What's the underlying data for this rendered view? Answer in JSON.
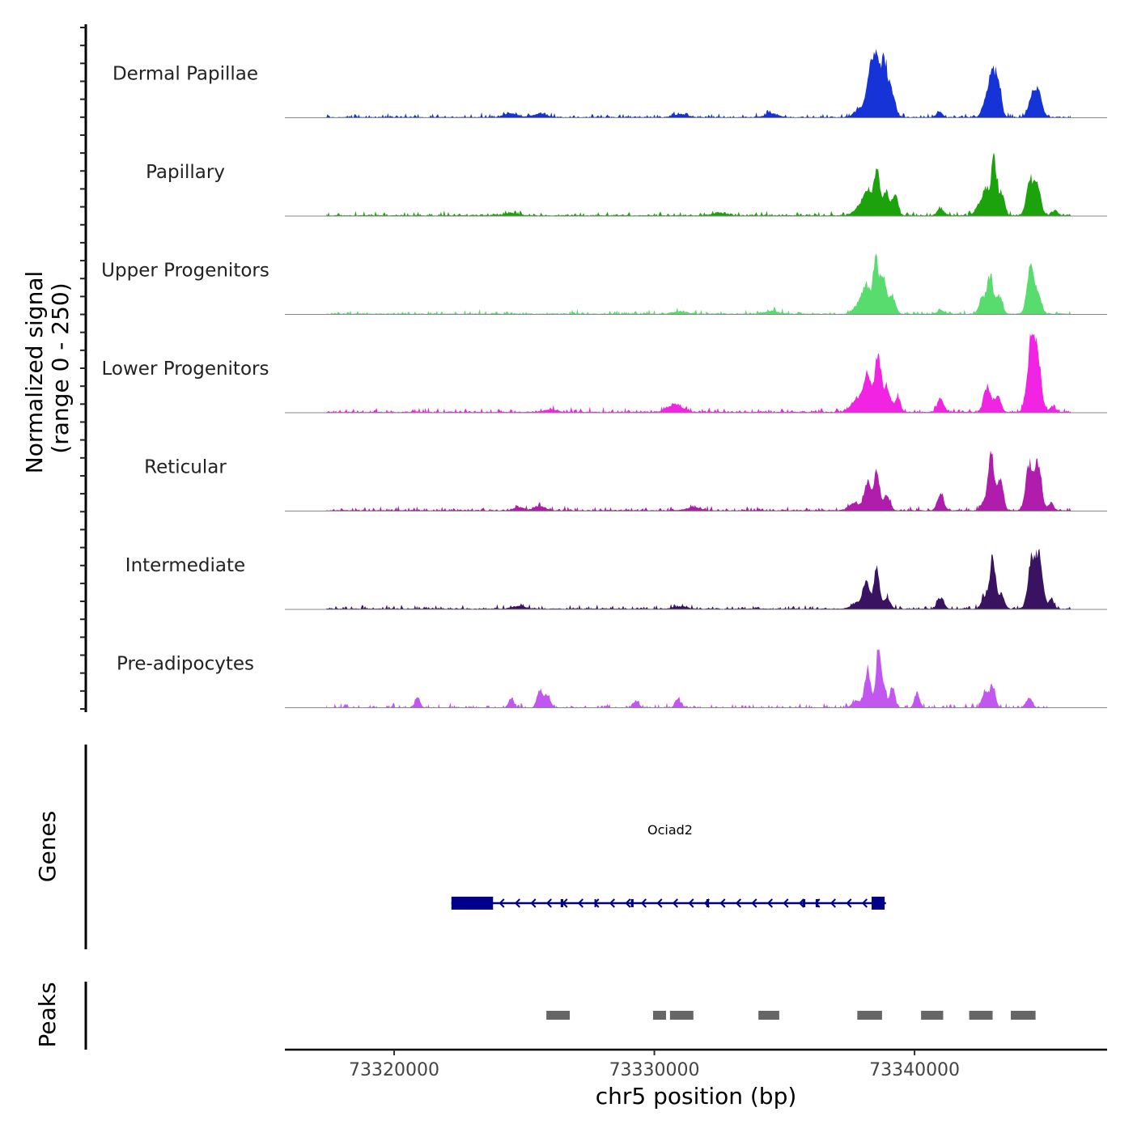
{
  "chart_data": {
    "type": "area",
    "region": {
      "chrom": "chr5",
      "start": 73315800,
      "end": 73347400
    },
    "data_extent": {
      "start": 73317400,
      "end": 73346000
    },
    "signal_range": [
      0,
      250
    ],
    "ylabel_line1": "Normalized signal",
    "ylabel_line2": "(range 0 - 250)",
    "xlabel": "chr5 position (bp)",
    "x_ticks": [
      {
        "value": 73320000,
        "label": "73320000"
      },
      {
        "value": 73330000,
        "label": "73330000"
      },
      {
        "value": 73340000,
        "label": "73340000"
      }
    ],
    "series": [
      {
        "name": "Dermal Papillae",
        "color": "#1533D6",
        "seed": 11,
        "base": 2.5,
        "noise_frac": 0.45,
        "peaks": [
          {
            "pos": 73338300,
            "height": 170,
            "width": 140
          },
          {
            "pos": 73338550,
            "height": 205,
            "width": 140
          },
          {
            "pos": 73338850,
            "height": 215,
            "width": 130
          },
          {
            "pos": 73339150,
            "height": 95,
            "width": 120
          },
          {
            "pos": 73337900,
            "height": 35,
            "width": 200
          },
          {
            "pos": 73340950,
            "height": 25,
            "width": 110
          },
          {
            "pos": 73342700,
            "height": 60,
            "width": 120
          },
          {
            "pos": 73342950,
            "height": 180,
            "width": 110
          },
          {
            "pos": 73343200,
            "height": 170,
            "width": 120
          },
          {
            "pos": 73344550,
            "height": 95,
            "width": 150
          },
          {
            "pos": 73344800,
            "height": 75,
            "width": 130
          },
          {
            "pos": 73324500,
            "height": 15,
            "width": 250
          },
          {
            "pos": 73325600,
            "height": 14,
            "width": 250
          },
          {
            "pos": 73331000,
            "height": 12,
            "width": 250
          },
          {
            "pos": 73334500,
            "height": 13,
            "width": 250
          }
        ]
      },
      {
        "name": "Papillary",
        "color": "#1CA20B",
        "seed": 23,
        "base": 3,
        "noise_frac": 0.4,
        "peaks": [
          {
            "pos": 73338200,
            "height": 95,
            "width": 130
          },
          {
            "pos": 73338550,
            "height": 200,
            "width": 110
          },
          {
            "pos": 73338900,
            "height": 95,
            "width": 120
          },
          {
            "pos": 73339250,
            "height": 85,
            "width": 110
          },
          {
            "pos": 73337900,
            "height": 40,
            "width": 200
          },
          {
            "pos": 73341000,
            "height": 30,
            "width": 120
          },
          {
            "pos": 73342500,
            "height": 45,
            "width": 150
          },
          {
            "pos": 73342750,
            "height": 100,
            "width": 110
          },
          {
            "pos": 73343050,
            "height": 225,
            "width": 110
          },
          {
            "pos": 73343350,
            "height": 90,
            "width": 110
          },
          {
            "pos": 73344450,
            "height": 150,
            "width": 140
          },
          {
            "pos": 73344750,
            "height": 110,
            "width": 120
          },
          {
            "pos": 73345400,
            "height": 20,
            "width": 100
          },
          {
            "pos": 73324500,
            "height": 10,
            "width": 250
          },
          {
            "pos": 73332500,
            "height": 10,
            "width": 250
          }
        ]
      },
      {
        "name": "Upper Progenitors",
        "color": "#59DC6E",
        "seed": 37,
        "base": 3,
        "noise_frac": 0.35,
        "peaks": [
          {
            "pos": 73338150,
            "height": 95,
            "width": 140
          },
          {
            "pos": 73338500,
            "height": 210,
            "width": 110
          },
          {
            "pos": 73338800,
            "height": 140,
            "width": 120
          },
          {
            "pos": 73339150,
            "height": 70,
            "width": 120
          },
          {
            "pos": 73337900,
            "height": 45,
            "width": 200
          },
          {
            "pos": 73341000,
            "height": 15,
            "width": 110
          },
          {
            "pos": 73342600,
            "height": 65,
            "width": 120
          },
          {
            "pos": 73342900,
            "height": 155,
            "width": 110
          },
          {
            "pos": 73343250,
            "height": 75,
            "width": 120
          },
          {
            "pos": 73344450,
            "height": 190,
            "width": 130
          },
          {
            "pos": 73344750,
            "height": 70,
            "width": 130
          },
          {
            "pos": 73334500,
            "height": 12,
            "width": 250
          },
          {
            "pos": 73331000,
            "height": 10,
            "width": 250
          }
        ]
      },
      {
        "name": "Lower Progenitors",
        "color": "#F024E2",
        "seed": 41,
        "base": 3,
        "noise_frac": 0.45,
        "peaks": [
          {
            "pos": 73338200,
            "height": 150,
            "width": 140
          },
          {
            "pos": 73338600,
            "height": 245,
            "width": 120
          },
          {
            "pos": 73338950,
            "height": 100,
            "width": 120
          },
          {
            "pos": 73339350,
            "height": 70,
            "width": 100
          },
          {
            "pos": 73337800,
            "height": 55,
            "width": 220
          },
          {
            "pos": 73341000,
            "height": 55,
            "width": 120
          },
          {
            "pos": 73342800,
            "height": 110,
            "width": 130
          },
          {
            "pos": 73343200,
            "height": 65,
            "width": 120
          },
          {
            "pos": 73344500,
            "height": 300,
            "width": 150
          },
          {
            "pos": 73344750,
            "height": 180,
            "width": 130
          },
          {
            "pos": 73345300,
            "height": 25,
            "width": 100
          },
          {
            "pos": 73330800,
            "height": 30,
            "width": 280
          },
          {
            "pos": 73326000,
            "height": 10,
            "width": 250
          }
        ]
      },
      {
        "name": "Reticular",
        "color": "#B01CAB",
        "seed": 53,
        "base": 3,
        "noise_frac": 0.45,
        "peaks": [
          {
            "pos": 73338200,
            "height": 120,
            "width": 120
          },
          {
            "pos": 73338550,
            "height": 165,
            "width": 110
          },
          {
            "pos": 73338950,
            "height": 55,
            "width": 120
          },
          {
            "pos": 73337700,
            "height": 30,
            "width": 220
          },
          {
            "pos": 73341000,
            "height": 65,
            "width": 120
          },
          {
            "pos": 73342700,
            "height": 35,
            "width": 130
          },
          {
            "pos": 73342950,
            "height": 245,
            "width": 110
          },
          {
            "pos": 73343300,
            "height": 130,
            "width": 110
          },
          {
            "pos": 73344400,
            "height": 195,
            "width": 130
          },
          {
            "pos": 73344750,
            "height": 190,
            "width": 130
          },
          {
            "pos": 73345250,
            "height": 30,
            "width": 100
          },
          {
            "pos": 73325600,
            "height": 18,
            "width": 200
          },
          {
            "pos": 73324800,
            "height": 12,
            "width": 200
          },
          {
            "pos": 73331500,
            "height": 12,
            "width": 250
          }
        ]
      },
      {
        "name": "Intermediate",
        "color": "#3A1262",
        "seed": 67,
        "base": 3,
        "noise_frac": 0.4,
        "peaks": [
          {
            "pos": 73338150,
            "height": 115,
            "width": 120
          },
          {
            "pos": 73338550,
            "height": 175,
            "width": 110
          },
          {
            "pos": 73338950,
            "height": 50,
            "width": 110
          },
          {
            "pos": 73337800,
            "height": 25,
            "width": 220
          },
          {
            "pos": 73341000,
            "height": 45,
            "width": 120
          },
          {
            "pos": 73342700,
            "height": 50,
            "width": 120
          },
          {
            "pos": 73343000,
            "height": 215,
            "width": 110
          },
          {
            "pos": 73343350,
            "height": 55,
            "width": 110
          },
          {
            "pos": 73344500,
            "height": 200,
            "width": 140
          },
          {
            "pos": 73344800,
            "height": 210,
            "width": 130
          },
          {
            "pos": 73345250,
            "height": 40,
            "width": 100
          },
          {
            "pos": 73324800,
            "height": 12,
            "width": 250
          },
          {
            "pos": 73331000,
            "height": 10,
            "width": 250
          }
        ]
      },
      {
        "name": "Pre-adipocytes",
        "color": "#C157EF",
        "seed": 79,
        "base": 0,
        "noise_frac": 0.55,
        "end": 73345200,
        "peaks": [
          {
            "pos": 73338200,
            "height": 160,
            "width": 110
          },
          {
            "pos": 73338600,
            "height": 250,
            "width": 90
          },
          {
            "pos": 73338800,
            "height": 90,
            "width": 100
          },
          {
            "pos": 73339150,
            "height": 80,
            "width": 100
          },
          {
            "pos": 73337800,
            "height": 30,
            "width": 180
          },
          {
            "pos": 73340100,
            "height": 60,
            "width": 100
          },
          {
            "pos": 73342700,
            "height": 70,
            "width": 110
          },
          {
            "pos": 73343000,
            "height": 80,
            "width": 110
          },
          {
            "pos": 73344400,
            "height": 40,
            "width": 120
          },
          {
            "pos": 73325600,
            "height": 70,
            "width": 110
          },
          {
            "pos": 73325900,
            "height": 55,
            "width": 110
          },
          {
            "pos": 73324500,
            "height": 40,
            "width": 100
          },
          {
            "pos": 73320900,
            "height": 40,
            "width": 100
          },
          {
            "pos": 73330900,
            "height": 40,
            "width": 100
          },
          {
            "pos": 73329300,
            "height": 30,
            "width": 100
          }
        ]
      }
    ],
    "genes_track": {
      "label": "Genes",
      "gene": {
        "name": "Ociad2",
        "color": "#00008B",
        "strand": "-",
        "start": 73322200,
        "end": 73338900,
        "exons": [
          {
            "start": 73322200,
            "end": 73323800,
            "thick": true
          },
          {
            "start": 73338350,
            "end": 73338850,
            "thick": true
          },
          {
            "start": 73326400,
            "end": 73326500,
            "thick": false
          },
          {
            "start": 73327700,
            "end": 73327760,
            "thick": false
          },
          {
            "start": 73329100,
            "end": 73329200,
            "thick": false
          },
          {
            "start": 73332000,
            "end": 73332100,
            "thick": false
          },
          {
            "start": 73335700,
            "end": 73335800,
            "thick": false
          },
          {
            "start": 73336200,
            "end": 73336300,
            "thick": false
          }
        ]
      }
    },
    "peaks_track": {
      "label": "Peaks",
      "color": "#666666",
      "regions": [
        {
          "start": 73325850,
          "end": 73326750
        },
        {
          "start": 73329950,
          "end": 73330450
        },
        {
          "start": 73330600,
          "end": 73331500
        },
        {
          "start": 73334000,
          "end": 73334800
        },
        {
          "start": 73337800,
          "end": 73338750
        },
        {
          "start": 73340250,
          "end": 73341100
        },
        {
          "start": 73342100,
          "end": 73343000
        },
        {
          "start": 73343700,
          "end": 73344650
        }
      ]
    }
  }
}
